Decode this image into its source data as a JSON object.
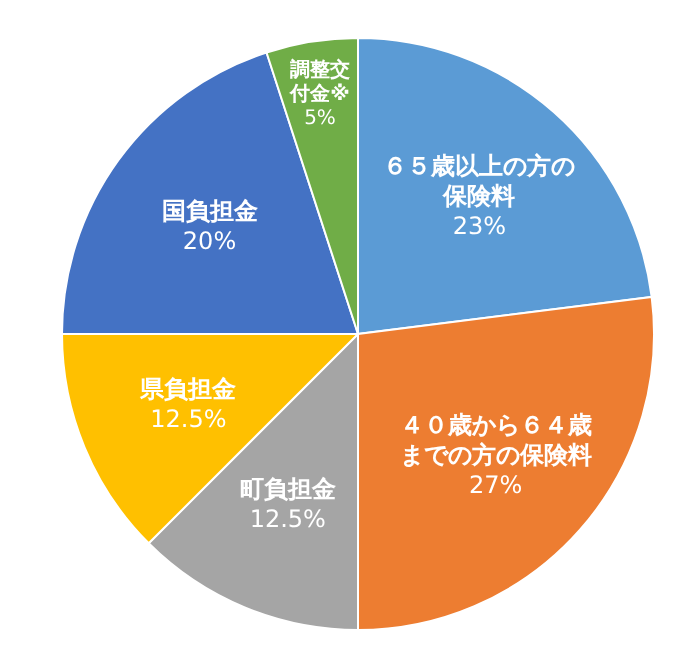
{
  "chart_data": {
    "type": "pie",
    "categories": [
      "６５歳以上の方の保険料",
      "４０歳から６４歳までの方の保険料",
      "町負担金",
      "県負担金",
      "国負担金",
      "調整交付金※"
    ],
    "values": [
      23,
      27,
      12.5,
      12.5,
      20,
      5
    ],
    "value_labels": [
      "23%",
      "27%",
      "12.5%",
      "12.5%",
      "20%",
      "5%"
    ],
    "colors": [
      "#5b9bd5",
      "#ed7d31",
      "#a5a5a5",
      "#ffc000",
      "#4472c4",
      "#70ad47"
    ]
  }
}
